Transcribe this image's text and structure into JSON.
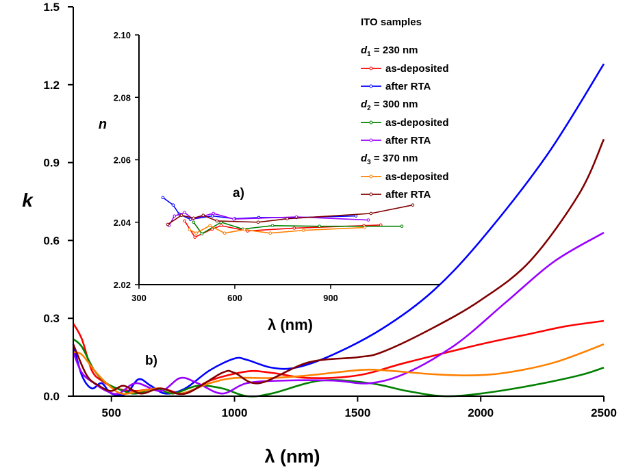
{
  "chart_data": [
    {
      "type": "line",
      "panel_label": "b)",
      "xlabel": "λ (nm)",
      "ylabel": "k",
      "xlim": [
        345,
        2500
      ],
      "ylim": [
        0,
        1.5
      ],
      "xticks": [
        "500",
        "1000",
        "1500",
        "2000",
        "2500"
      ],
      "yticks": [
        "0.0",
        "0.3",
        "0.6",
        "0.9",
        "1.2",
        "1.5"
      ],
      "series": [
        {
          "name": "d1 as-deposited",
          "color": "#ff0000",
          "points": [
            [
              345,
              0.28
            ],
            [
              380,
              0.22
            ],
            [
              420,
              0.1
            ],
            [
              460,
              0.06
            ],
            [
              520,
              0.03
            ],
            [
              600,
              0.02
            ],
            [
              700,
              0.03
            ],
            [
              800,
              0.01
            ],
            [
              900,
              0.06
            ],
            [
              1050,
              0.095
            ],
            [
              1150,
              0.09
            ],
            [
              1300,
              0.07
            ],
            [
              1500,
              0.08
            ],
            [
              1700,
              0.13
            ],
            [
              2000,
              0.2
            ],
            [
              2200,
              0.24
            ],
            [
              2350,
              0.27
            ],
            [
              2500,
              0.29
            ]
          ]
        },
        {
          "name": "d1 after RTA",
          "color": "#0000ff",
          "points": [
            [
              345,
              0.2
            ],
            [
              380,
              0.08
            ],
            [
              420,
              0.03
            ],
            [
              460,
              0.05
            ],
            [
              500,
              0.01
            ],
            [
              560,
              0.01
            ],
            [
              610,
              0.065
            ],
            [
              660,
              0.04
            ],
            [
              720,
              0.01
            ],
            [
              800,
              0.03
            ],
            [
              900,
              0.1
            ],
            [
              1000,
              0.145
            ],
            [
              1050,
              0.14
            ],
            [
              1150,
              0.11
            ],
            [
              1250,
              0.11
            ],
            [
              1400,
              0.16
            ],
            [
              1600,
              0.26
            ],
            [
              1800,
              0.4
            ],
            [
              2000,
              0.6
            ],
            [
              2270,
              0.93
            ],
            [
              2500,
              1.28
            ]
          ]
        },
        {
          "name": "d2 as-deposited",
          "color": "#008000",
          "points": [
            [
              345,
              0.22
            ],
            [
              380,
              0.19
            ],
            [
              430,
              0.1
            ],
            [
              480,
              0.05
            ],
            [
              550,
              0.02
            ],
            [
              600,
              0.01
            ],
            [
              680,
              0.03
            ],
            [
              750,
              0.01
            ],
            [
              850,
              0.04
            ],
            [
              950,
              0.03
            ],
            [
              1050,
              0.0
            ],
            [
              1150,
              0.01
            ],
            [
              1350,
              0.06
            ],
            [
              1550,
              0.05
            ],
            [
              1700,
              0.02
            ],
            [
              1850,
              0.0
            ],
            [
              2000,
              0.01
            ],
            [
              2200,
              0.04
            ],
            [
              2400,
              0.08
            ],
            [
              2500,
              0.11
            ]
          ]
        },
        {
          "name": "d2 after RTA",
          "color": "#9900ff",
          "points": [
            [
              345,
              0.17
            ],
            [
              380,
              0.09
            ],
            [
              430,
              0.05
            ],
            [
              480,
              0.02
            ],
            [
              530,
              0.01
            ],
            [
              600,
              0.05
            ],
            [
              700,
              0.02
            ],
            [
              780,
              0.07
            ],
            [
              850,
              0.05
            ],
            [
              950,
              0.01
            ],
            [
              1050,
              0.05
            ],
            [
              1200,
              0.06
            ],
            [
              1400,
              0.06
            ],
            [
              1550,
              0.05
            ],
            [
              1700,
              0.09
            ],
            [
              1900,
              0.2
            ],
            [
              2100,
              0.36
            ],
            [
              2300,
              0.52
            ],
            [
              2500,
              0.63
            ]
          ]
        },
        {
          "name": "d3 as-deposited",
          "color": "#ff8000",
          "points": [
            [
              345,
              0.17
            ],
            [
              380,
              0.16
            ],
            [
              430,
              0.1
            ],
            [
              480,
              0.05
            ],
            [
              540,
              0.01
            ],
            [
              620,
              0.02
            ],
            [
              700,
              0.03
            ],
            [
              780,
              0.01
            ],
            [
              900,
              0.05
            ],
            [
              1000,
              0.07
            ],
            [
              1150,
              0.07
            ],
            [
              1300,
              0.08
            ],
            [
              1500,
              0.1
            ],
            [
              1600,
              0.1
            ],
            [
              1800,
              0.085
            ],
            [
              1950,
              0.08
            ],
            [
              2100,
              0.09
            ],
            [
              2300,
              0.13
            ],
            [
              2500,
              0.2
            ]
          ]
        },
        {
          "name": "d3 after RTA",
          "color": "#800000",
          "points": [
            [
              345,
              0.2
            ],
            [
              400,
              0.08
            ],
            [
              450,
              0.04
            ],
            [
              500,
              0.02
            ],
            [
              550,
              0.04
            ],
            [
              620,
              0.01
            ],
            [
              700,
              0.03
            ],
            [
              800,
              0.01
            ],
            [
              950,
              0.09
            ],
            [
              1000,
              0.09
            ],
            [
              1100,
              0.05
            ],
            [
              1300,
              0.13
            ],
            [
              1500,
              0.15
            ],
            [
              1600,
              0.17
            ],
            [
              1800,
              0.26
            ],
            [
              2000,
              0.37
            ],
            [
              2200,
              0.52
            ],
            [
              2400,
              0.78
            ],
            [
              2500,
              0.99
            ]
          ]
        }
      ]
    },
    {
      "type": "line",
      "panel_label": "a)",
      "xlabel": "λ (nm)",
      "ylabel": "n",
      "xlim": [
        300,
        1243
      ],
      "ylim": [
        2.02,
        2.1
      ],
      "xticks": [
        "300",
        "600",
        "900"
      ],
      "yticks": [
        "2.02",
        "2.04",
        "2.06",
        "2.08",
        "2.10"
      ],
      "series": [
        {
          "name": "d1 as-deposited",
          "color": "#ff0000",
          "points": [
            [
              443,
              2.0404
            ],
            [
              475,
              2.0352
            ],
            [
              529,
              2.0378
            ],
            [
              557,
              2.0389
            ],
            [
              640,
              2.0372
            ],
            [
              786,
              2.0381
            ],
            [
              1004,
              2.0389
            ],
            [
              1057,
              2.0391
            ]
          ]
        },
        {
          "name": "d1 after RTA",
          "color": "#0000ff",
          "points": [
            [
              375,
              2.0479
            ],
            [
              407,
              2.0455
            ],
            [
              426,
              2.0426
            ],
            [
              461,
              2.0409
            ],
            [
              530,
              2.042
            ],
            [
              600,
              2.0411
            ],
            [
              675,
              2.0415
            ],
            [
              793,
              2.0415
            ],
            [
              979,
              2.042
            ]
          ]
        },
        {
          "name": "d2 as-deposited",
          "color": "#008000",
          "points": [
            [
              471,
              2.04
            ],
            [
              497,
              2.0363
            ],
            [
              557,
              2.04
            ],
            [
              625,
              2.0378
            ],
            [
              718,
              2.0389
            ],
            [
              865,
              2.0387
            ],
            [
              1123,
              2.0387
            ]
          ]
        },
        {
          "name": "d2 after RTA",
          "color": "#9900ff",
          "points": [
            [
              394,
              2.0389
            ],
            [
              411,
              2.042
            ],
            [
              443,
              2.0431
            ],
            [
              468,
              2.0411
            ],
            [
              533,
              2.0428
            ],
            [
              597,
              2.041
            ],
            [
              793,
              2.0417
            ],
            [
              1018,
              2.0407
            ]
          ]
        },
        {
          "name": "d3 as-deposited",
          "color": "#ff8000",
          "points": [
            [
              458,
              2.0376
            ],
            [
              479,
              2.0365
            ],
            [
              522,
              2.0389
            ],
            [
              568,
              2.0365
            ],
            [
              630,
              2.0376
            ],
            [
              711,
              2.0365
            ],
            [
              815,
              2.0374
            ],
            [
              1007,
              2.0383
            ]
          ]
        },
        {
          "name": "d3 after RTA",
          "color": "#800000",
          "points": [
            [
              390,
              2.0393
            ],
            [
              433,
              2.0422
            ],
            [
              471,
              2.0413
            ],
            [
              501,
              2.0422
            ],
            [
              544,
              2.0404
            ],
            [
              673,
              2.04
            ],
            [
              764,
              2.0411
            ],
            [
              1026,
              2.0428
            ],
            [
              1157,
              2.0455
            ]
          ]
        }
      ]
    }
  ],
  "legend": {
    "title": "ITO samples",
    "groups": [
      {
        "label_prefix": "d",
        "label_sub": "1",
        "label_suffix": " = 230 nm",
        "items": [
          {
            "label": "as-deposited",
            "series": 0
          },
          {
            "label": "after RTA",
            "series": 1
          }
        ]
      },
      {
        "label_prefix": "d",
        "label_sub": "2",
        "label_suffix": " = 300 nm",
        "items": [
          {
            "label": "as-deposited",
            "series": 2
          },
          {
            "label": "after RTA",
            "series": 3
          }
        ]
      },
      {
        "label_prefix": "d",
        "label_sub": "3",
        "label_suffix": " = 370 nm",
        "items": [
          {
            "label": "as-deposited",
            "series": 4
          },
          {
            "label": "after RTA",
            "series": 5
          }
        ]
      }
    ]
  },
  "panel_label_color": "#808000"
}
